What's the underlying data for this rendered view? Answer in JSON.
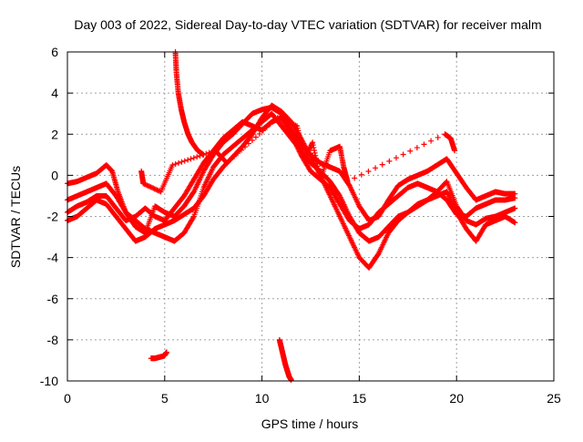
{
  "chart_data": {
    "type": "scatter",
    "title": "Day 003 of 2022, Sidereal Day-to-day VTEC variation (SDTVAR) for receiver malm",
    "xlabel": "GPS time / hours",
    "ylabel": "SDTVAR / TECUs",
    "xlim": [
      0,
      25
    ],
    "ylim": [
      -10,
      6
    ],
    "xticks": [
      0,
      5,
      10,
      15,
      20,
      25
    ],
    "xtick_labels": [
      "0",
      "5",
      "10",
      "15",
      "20",
      "25"
    ],
    "yticks": [
      -10,
      -8,
      -6,
      -4,
      -2,
      0,
      2,
      4,
      6
    ],
    "ytick_labels": [
      "-10",
      "-8",
      "-6",
      "-4",
      "-2",
      "0",
      "2",
      "4",
      "6"
    ],
    "grid": true,
    "marker": "+",
    "color": "#ff0000",
    "series": [
      {
        "name": "track-a",
        "points": [
          [
            0,
            -0.4
          ],
          [
            0.5,
            -0.3
          ],
          [
            1,
            -0.1
          ],
          [
            1.5,
            0.1
          ],
          [
            2,
            0.5
          ],
          [
            2.3,
            0.2
          ],
          [
            2.6,
            -0.8
          ],
          [
            3,
            -1.8
          ],
          [
            3.5,
            -2.5
          ],
          [
            4,
            -2.8
          ],
          [
            4.5,
            -1.5
          ],
          [
            5,
            -1.8
          ],
          [
            5.5,
            -2.0
          ],
          [
            6,
            -1.5
          ],
          [
            6.5,
            -0.8
          ],
          [
            7,
            0.2
          ],
          [
            7.5,
            1.0
          ],
          [
            8,
            1.6
          ],
          [
            8.5,
            2.0
          ],
          [
            9,
            2.5
          ],
          [
            9.5,
            3.0
          ],
          [
            10,
            3.2
          ],
          [
            10.5,
            3.3
          ],
          [
            11,
            3.0
          ],
          [
            11.5,
            2.2
          ],
          [
            12,
            1.5
          ],
          [
            12.5,
            1.0
          ],
          [
            13,
            0.6
          ],
          [
            13.5,
            0.4
          ],
          [
            14,
            0.2
          ],
          [
            14.5,
            -0.5
          ],
          [
            15,
            -1.5
          ],
          [
            15.5,
            -2.2
          ],
          [
            16,
            -2.0
          ],
          [
            16.5,
            -1.2
          ],
          [
            17,
            -0.5
          ],
          [
            17.5,
            -0.2
          ],
          [
            18,
            0
          ],
          [
            18.5,
            0.2
          ],
          [
            19,
            0.5
          ],
          [
            19.5,
            0.8
          ],
          [
            20,
            0.1
          ],
          [
            20.5,
            -0.6
          ],
          [
            21,
            -1.2
          ],
          [
            21.5,
            -1.0
          ],
          [
            22,
            -0.8
          ],
          [
            22.5,
            -0.9
          ],
          [
            23,
            -0.9
          ]
        ]
      },
      {
        "name": "track-b",
        "points": [
          [
            0,
            -1.2
          ],
          [
            0.5,
            -1.0
          ],
          [
            1,
            -0.8
          ],
          [
            1.5,
            -0.6
          ],
          [
            2,
            -0.4
          ],
          [
            2.5,
            -1.0
          ],
          [
            3,
            -1.8
          ],
          [
            3.5,
            -2.2
          ],
          [
            4,
            -2.6
          ],
          [
            4.5,
            -2.8
          ],
          [
            5,
            -3.0
          ],
          [
            5.5,
            -3.2
          ],
          [
            6,
            -2.8
          ],
          [
            6.5,
            -2.0
          ],
          [
            7,
            -0.6
          ],
          [
            7.5,
            0.4
          ],
          [
            8,
            1.0
          ],
          [
            8.5,
            1.4
          ],
          [
            9,
            1.8
          ],
          [
            9.5,
            2.2
          ],
          [
            10,
            2.6
          ],
          [
            10.5,
            3.0
          ],
          [
            11,
            2.4
          ],
          [
            11.5,
            1.8
          ],
          [
            12,
            1.2
          ],
          [
            12.5,
            0.6
          ],
          [
            13,
            0.2
          ],
          [
            13.5,
            -0.3
          ],
          [
            14,
            -1.0
          ],
          [
            14.5,
            -2.0
          ],
          [
            15,
            -2.8
          ],
          [
            15.5,
            -3.2
          ],
          [
            16,
            -3.0
          ],
          [
            16.5,
            -2.5
          ],
          [
            17,
            -2.0
          ],
          [
            17.5,
            -1.8
          ],
          [
            18,
            -1.5
          ],
          [
            18.5,
            -1.2
          ],
          [
            19,
            -0.8
          ],
          [
            19.5,
            -0.3
          ],
          [
            20,
            -1.5
          ],
          [
            20.5,
            -2.2
          ],
          [
            21,
            -2.4
          ],
          [
            21.5,
            -2.1
          ],
          [
            22,
            -2.0
          ],
          [
            22.5,
            -1.8
          ],
          [
            23,
            -1.6
          ]
        ]
      },
      {
        "name": "track-c",
        "points": [
          [
            0,
            -2.2
          ],
          [
            0.5,
            -2.0
          ],
          [
            1,
            -1.6
          ],
          [
            1.5,
            -1.2
          ],
          [
            2,
            -1.4
          ],
          [
            2.5,
            -2.0
          ],
          [
            3,
            -2.6
          ],
          [
            3.5,
            -3.2
          ],
          [
            4,
            -3.0
          ],
          [
            4.5,
            -2.6
          ],
          [
            5,
            -2.4
          ],
          [
            5.5,
            -2.2
          ],
          [
            6,
            -1.9
          ],
          [
            6.5,
            -1.6
          ],
          [
            7,
            -1.0
          ],
          [
            7.5,
            -0.2
          ],
          [
            8,
            0.4
          ],
          [
            8.5,
            0.9
          ],
          [
            9,
            1.4
          ],
          [
            9.5,
            2.0
          ],
          [
            10,
            2.8
          ],
          [
            10.5,
            3.4
          ],
          [
            11,
            3.1
          ],
          [
            11.5,
            2.6
          ],
          [
            12,
            1.8
          ],
          [
            12.5,
            0.9
          ],
          [
            13,
            0
          ],
          [
            13.5,
            -1.0
          ],
          [
            14,
            -2.0
          ],
          [
            14.5,
            -3.0
          ],
          [
            15,
            -4.0
          ],
          [
            15.5,
            -4.5
          ],
          [
            16,
            -3.8
          ],
          [
            16.5,
            -2.8
          ],
          [
            17,
            -2.2
          ],
          [
            17.5,
            -1.8
          ],
          [
            18,
            -1.4
          ],
          [
            18.5,
            -1.2
          ],
          [
            19,
            -1.0
          ],
          [
            19.5,
            -0.8
          ],
          [
            20,
            -1.8
          ],
          [
            20.5,
            -2.6
          ],
          [
            21,
            -3.2
          ],
          [
            21.5,
            -2.4
          ],
          [
            22,
            -2.2
          ],
          [
            22.5,
            -2.0
          ],
          [
            23,
            -2.3
          ]
        ]
      },
      {
        "name": "track-d",
        "points": [
          [
            0,
            -1.8
          ],
          [
            0.5,
            -1.5
          ],
          [
            1,
            -1.3
          ],
          [
            1.5,
            -1.0
          ],
          [
            2,
            -1.0
          ],
          [
            2.5,
            -1.6
          ],
          [
            3,
            -2.2
          ],
          [
            3.5,
            -2.0
          ],
          [
            4,
            -1.6
          ],
          [
            4.5,
            -2.0
          ],
          [
            5,
            -2.2
          ],
          [
            5.5,
            -1.6
          ],
          [
            6,
            -1.0
          ],
          [
            6.5,
            -0.2
          ],
          [
            7,
            0.6
          ],
          [
            7.5,
            1.2
          ],
          [
            8,
            1.8
          ],
          [
            8.5,
            2.2
          ],
          [
            9,
            2.6
          ],
          [
            9.5,
            2.4
          ],
          [
            10,
            2.2
          ],
          [
            10.5,
            2.6
          ],
          [
            11,
            2.8
          ],
          [
            11.5,
            2.0
          ],
          [
            12,
            1.0
          ],
          [
            12.5,
            0.2
          ],
          [
            13,
            -0.2
          ],
          [
            13.5,
            -0.6
          ],
          [
            14,
            -1.4
          ],
          [
            14.5,
            -2.2
          ],
          [
            15,
            -2.6
          ],
          [
            15.5,
            -2.4
          ],
          [
            16,
            -1.8
          ],
          [
            16.5,
            -1.4
          ],
          [
            17,
            -1.0
          ],
          [
            17.5,
            -0.6
          ],
          [
            18,
            -0.4
          ],
          [
            18.5,
            -0.6
          ],
          [
            19,
            -0.8
          ],
          [
            19.5,
            -1.2
          ],
          [
            20,
            -1.9
          ],
          [
            20.5,
            -2.0
          ],
          [
            21,
            -1.6
          ],
          [
            21.5,
            -1.4
          ],
          [
            22,
            -1.2
          ],
          [
            22.5,
            -1.2
          ],
          [
            23,
            -1.1
          ]
        ]
      },
      {
        "name": "spike-early-morning",
        "points": [
          [
            5.55,
            6.0
          ],
          [
            5.6,
            5.0
          ],
          [
            5.7,
            4.0
          ],
          [
            5.85,
            3.2
          ],
          [
            6.0,
            2.6
          ],
          [
            6.2,
            2.0
          ],
          [
            6.4,
            1.6
          ],
          [
            6.7,
            1.2
          ],
          [
            7.0,
            1.0
          ]
        ]
      },
      {
        "name": "low-cluster-5h",
        "points": [
          [
            4.3,
            -8.9
          ],
          [
            4.5,
            -8.9
          ],
          [
            4.7,
            -8.85
          ],
          [
            4.9,
            -8.8
          ],
          [
            5.0,
            -8.75
          ],
          [
            5.1,
            -8.6
          ]
        ]
      },
      {
        "name": "low-drop-11h",
        "points": [
          [
            10.9,
            -8.0
          ],
          [
            11.0,
            -8.4
          ],
          [
            11.1,
            -8.8
          ],
          [
            11.2,
            -9.2
          ],
          [
            11.3,
            -9.5
          ],
          [
            11.4,
            -9.8
          ],
          [
            11.5,
            -9.95
          ]
        ]
      },
      {
        "name": "scatter-spikes",
        "points": [
          [
            3.8,
            0.2
          ],
          [
            3.9,
            -0.4
          ],
          [
            4.8,
            -0.8
          ],
          [
            5.4,
            0.5
          ],
          [
            7.6,
            1.2
          ],
          [
            8.2,
            0.6
          ],
          [
            10.8,
            2.8
          ],
          [
            11.8,
            2.4
          ],
          [
            12.2,
            0.8
          ],
          [
            12.6,
            1.6
          ],
          [
            13.0,
            -0.2
          ],
          [
            13.5,
            1.2
          ],
          [
            14.0,
            1.4
          ],
          [
            14.2,
            0.4
          ],
          [
            14.4,
            -0.3
          ],
          [
            19.4,
            2.0
          ],
          [
            19.7,
            1.8
          ],
          [
            19.9,
            1.2
          ]
        ]
      }
    ]
  }
}
